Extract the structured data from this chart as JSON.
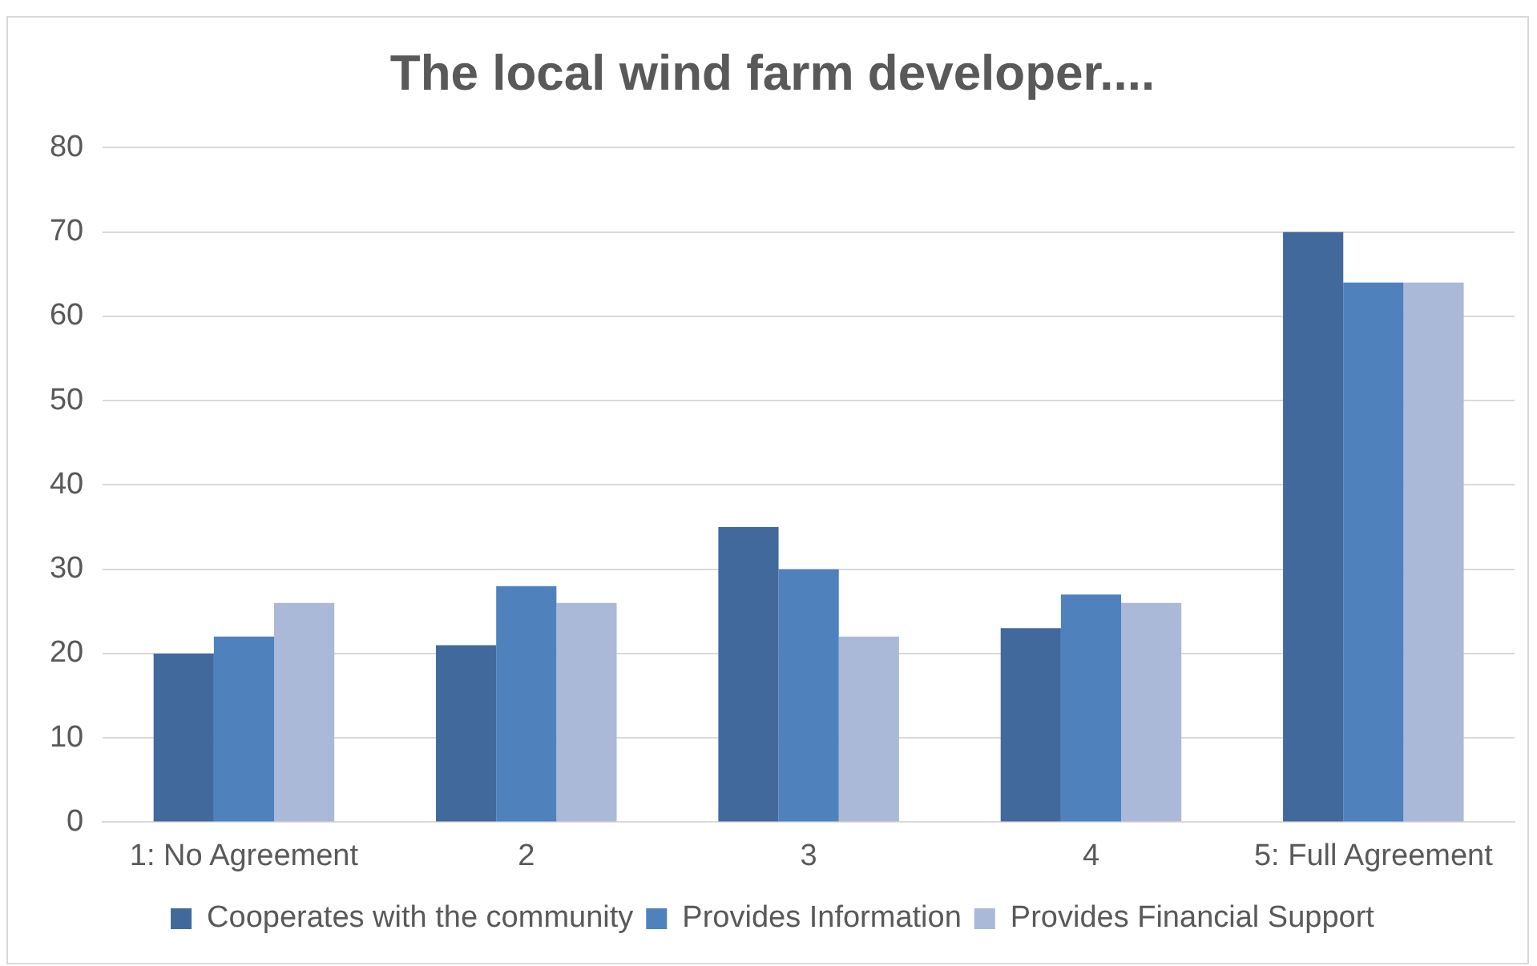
{
  "chart_data": {
    "type": "bar",
    "title": "The local wind farm developer....",
    "categories": [
      "1: No Agreement",
      "2",
      "3",
      "4",
      "5: Full Agreement"
    ],
    "series": [
      {
        "name": "Cooperates with the community",
        "color": "#41699b",
        "values": [
          20,
          21,
          35,
          23,
          70
        ]
      },
      {
        "name": "Provides Information",
        "color": "#4f81bd",
        "values": [
          22,
          28,
          30,
          27,
          64
        ]
      },
      {
        "name": "Provides Financial Support",
        "color": "#aab9d8",
        "values": [
          26,
          26,
          22,
          26,
          64
        ]
      }
    ],
    "ylim": [
      0,
      80
    ],
    "yticks": [
      0,
      10,
      20,
      30,
      40,
      50,
      60,
      70,
      80
    ],
    "grid": "y",
    "legend": "bottom"
  }
}
